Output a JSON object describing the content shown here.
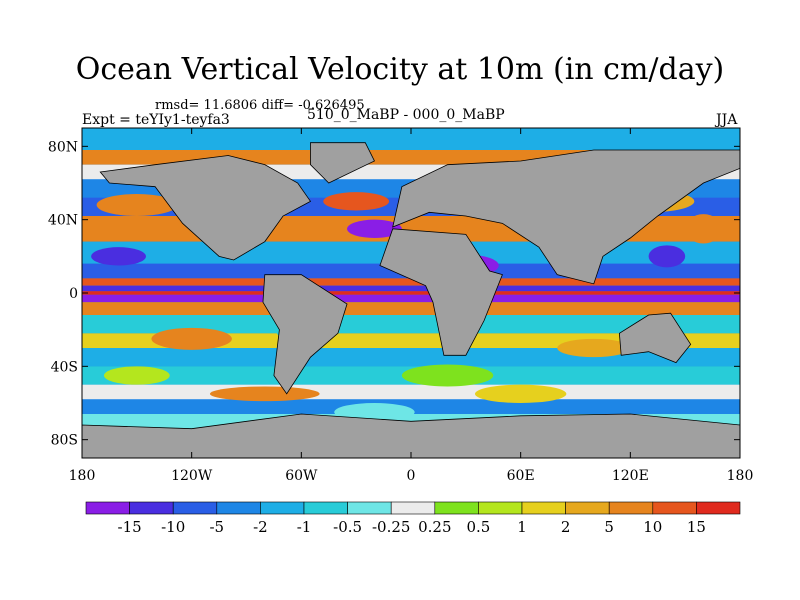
{
  "title": "Ocean Vertical Velocity at 10m (in cm/day)",
  "stats": "rmsd= 11.6806 diff= -0.626495",
  "comparison": "510_0_MaBP - 000_0_MaBP",
  "experiment": "Expt = teYIy1-teyfa3",
  "season": "JJA",
  "chart_data": {
    "type": "heatmap",
    "title": "Ocean Vertical Velocity at 10m (in cm/day)",
    "units": "cm/day",
    "x_range": [
      -180,
      180
    ],
    "y_range": [
      -90,
      90
    ],
    "y_ticks": [
      {
        "value": 80,
        "label": "80N"
      },
      {
        "value": 40,
        "label": "40N"
      },
      {
        "value": 0,
        "label": "0"
      },
      {
        "value": -40,
        "label": "40S"
      },
      {
        "value": -80,
        "label": "80S"
      }
    ],
    "x_ticks": [
      {
        "value": -180,
        "label": "180"
      },
      {
        "value": -120,
        "label": "120W"
      },
      {
        "value": -60,
        "label": "60W"
      },
      {
        "value": 0,
        "label": "0"
      },
      {
        "value": 60,
        "label": "60E"
      },
      {
        "value": 120,
        "label": "120E"
      },
      {
        "value": 180,
        "label": "180"
      }
    ],
    "colorbar": {
      "labels": [
        "-15",
        "-10",
        "-5",
        "-2",
        "-1",
        "-0.5",
        "-0.25",
        "0.25",
        "0.5",
        "1",
        "2",
        "5",
        "10",
        "15"
      ],
      "colors": [
        "#8a1ee6",
        "#4a2ee0",
        "#2a5ee6",
        "#1e86e6",
        "#1eaee6",
        "#28ccd8",
        "#6ee6e6",
        "#ececec",
        "#7ee21e",
        "#b4e61e",
        "#e6d01e",
        "#e6a81e",
        "#e6841e",
        "#e6561e",
        "#e02a1e"
      ]
    },
    "land_color": "#a0a0a0"
  }
}
